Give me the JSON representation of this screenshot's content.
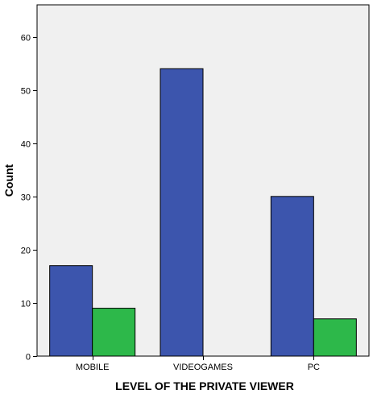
{
  "chart_data": {
    "type": "bar",
    "categories": [
      "MOBILE",
      "VIDEOGAMES",
      "PC"
    ],
    "series": [
      {
        "color": "#3c55ad",
        "values": [
          17,
          54,
          30
        ]
      },
      {
        "color": "#2db84a",
        "values": [
          9,
          0,
          7
        ]
      }
    ],
    "xlabel": "LEVEL OF THE PRIVATE VIEWER",
    "ylabel": "Count",
    "ylim": [
      0,
      66
    ],
    "yticks": [
      0,
      10,
      20,
      30,
      40,
      50,
      60
    ],
    "grid": false,
    "plot_background": "#f0f0f0"
  }
}
